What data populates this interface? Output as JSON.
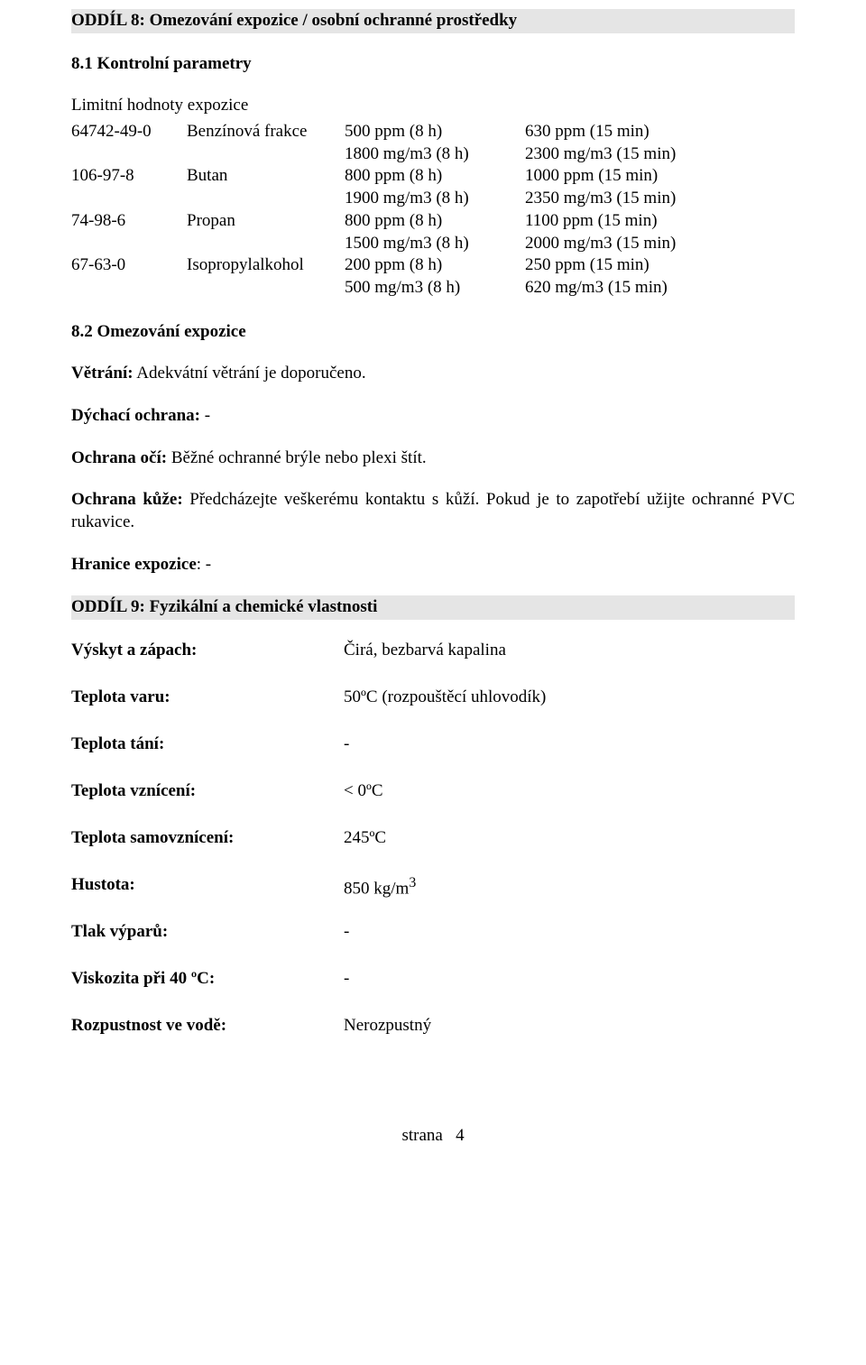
{
  "section8": {
    "header": "ODDÍL 8: Omezování expozice / osobní ochranné prostředky",
    "s8_1_title": "8.1 Kontrolní parametry",
    "limit_label": "Limitní hodnoty expozice",
    "rows": [
      {
        "cas": "64742-49-0",
        "name": "Benzínová frakce",
        "c1a": "500 ppm (8 h)",
        "c2a": "630 ppm (15 min)",
        "c1b": "1800 mg/m3 (8 h)",
        "c2b": "2300 mg/m3 (15 min)"
      },
      {
        "cas": "106-97-8",
        "name": "Butan",
        "c1a": "800 ppm (8 h)",
        "c2a": "1000 ppm (15 min)",
        "c1b": "1900 mg/m3 (8 h)",
        "c2b": "2350 mg/m3 (15 min)"
      },
      {
        "cas": "74-98-6",
        "name": "Propan",
        "c1a": "800 ppm (8 h)",
        "c2a": "1100 ppm (15 min)",
        "c1b": "1500 mg/m3 (8 h)",
        "c2b": "2000 mg/m3 (15 min)"
      },
      {
        "cas": "67-63-0",
        "name": "Isopropylalkohol",
        "c1a": "200 ppm (8 h)",
        "c2a": "250 ppm (15 min)",
        "c1b": "500 mg/m3 (8 h)",
        "c2b": "620 mg/m3 (15 min)"
      }
    ],
    "s8_2_title": "8.2 Omezování expozice",
    "ventilation_label": "Větrání:",
    "ventilation_text": " Adekvátní větrání je doporučeno.",
    "respiratory_label": "Dýchací ochrana:",
    "respiratory_text": " -",
    "eye_label": "Ochrana očí:",
    "eye_text": " Běžné ochranné brýle nebo plexi štít.",
    "skin_label": "Ochrana kůže:",
    "skin_text": " Předcházejte veškerému kontaktu s kůží. Pokud je to zapotřebí užijte ochranné PVC rukavice.",
    "exposure_limit_label": "Hranice expozice",
    "exposure_limit_text": ": -"
  },
  "section9": {
    "header": "ODDÍL 9: Fyzikální a chemické vlastnosti",
    "props": [
      {
        "label": "Výskyt a zápach:",
        "value": "Čirá, bezbarvá kapalina"
      },
      {
        "label": "Teplota varu:",
        "value": "50ºC (rozpouštěcí uhlovodík)"
      },
      {
        "label": "Teplota tání:",
        "value": "-"
      },
      {
        "label": "Teplota vznícení:",
        "value": "< 0ºC"
      },
      {
        "label": "Teplota samovznícení:",
        "value": "245ºC"
      },
      {
        "label": "Hustota:",
        "value": "850 kg/m3",
        "superscript": "3",
        "base": "850 kg/m"
      },
      {
        "label": "Tlak výparů:",
        "value": "-"
      },
      {
        "label": "Viskozita při 40 ºC:",
        "value": "-"
      },
      {
        "label": "Rozpustnost ve vodě:",
        "value": "Nerozpustný"
      }
    ]
  },
  "footer": {
    "page_label": "strana",
    "page_num": "4"
  }
}
